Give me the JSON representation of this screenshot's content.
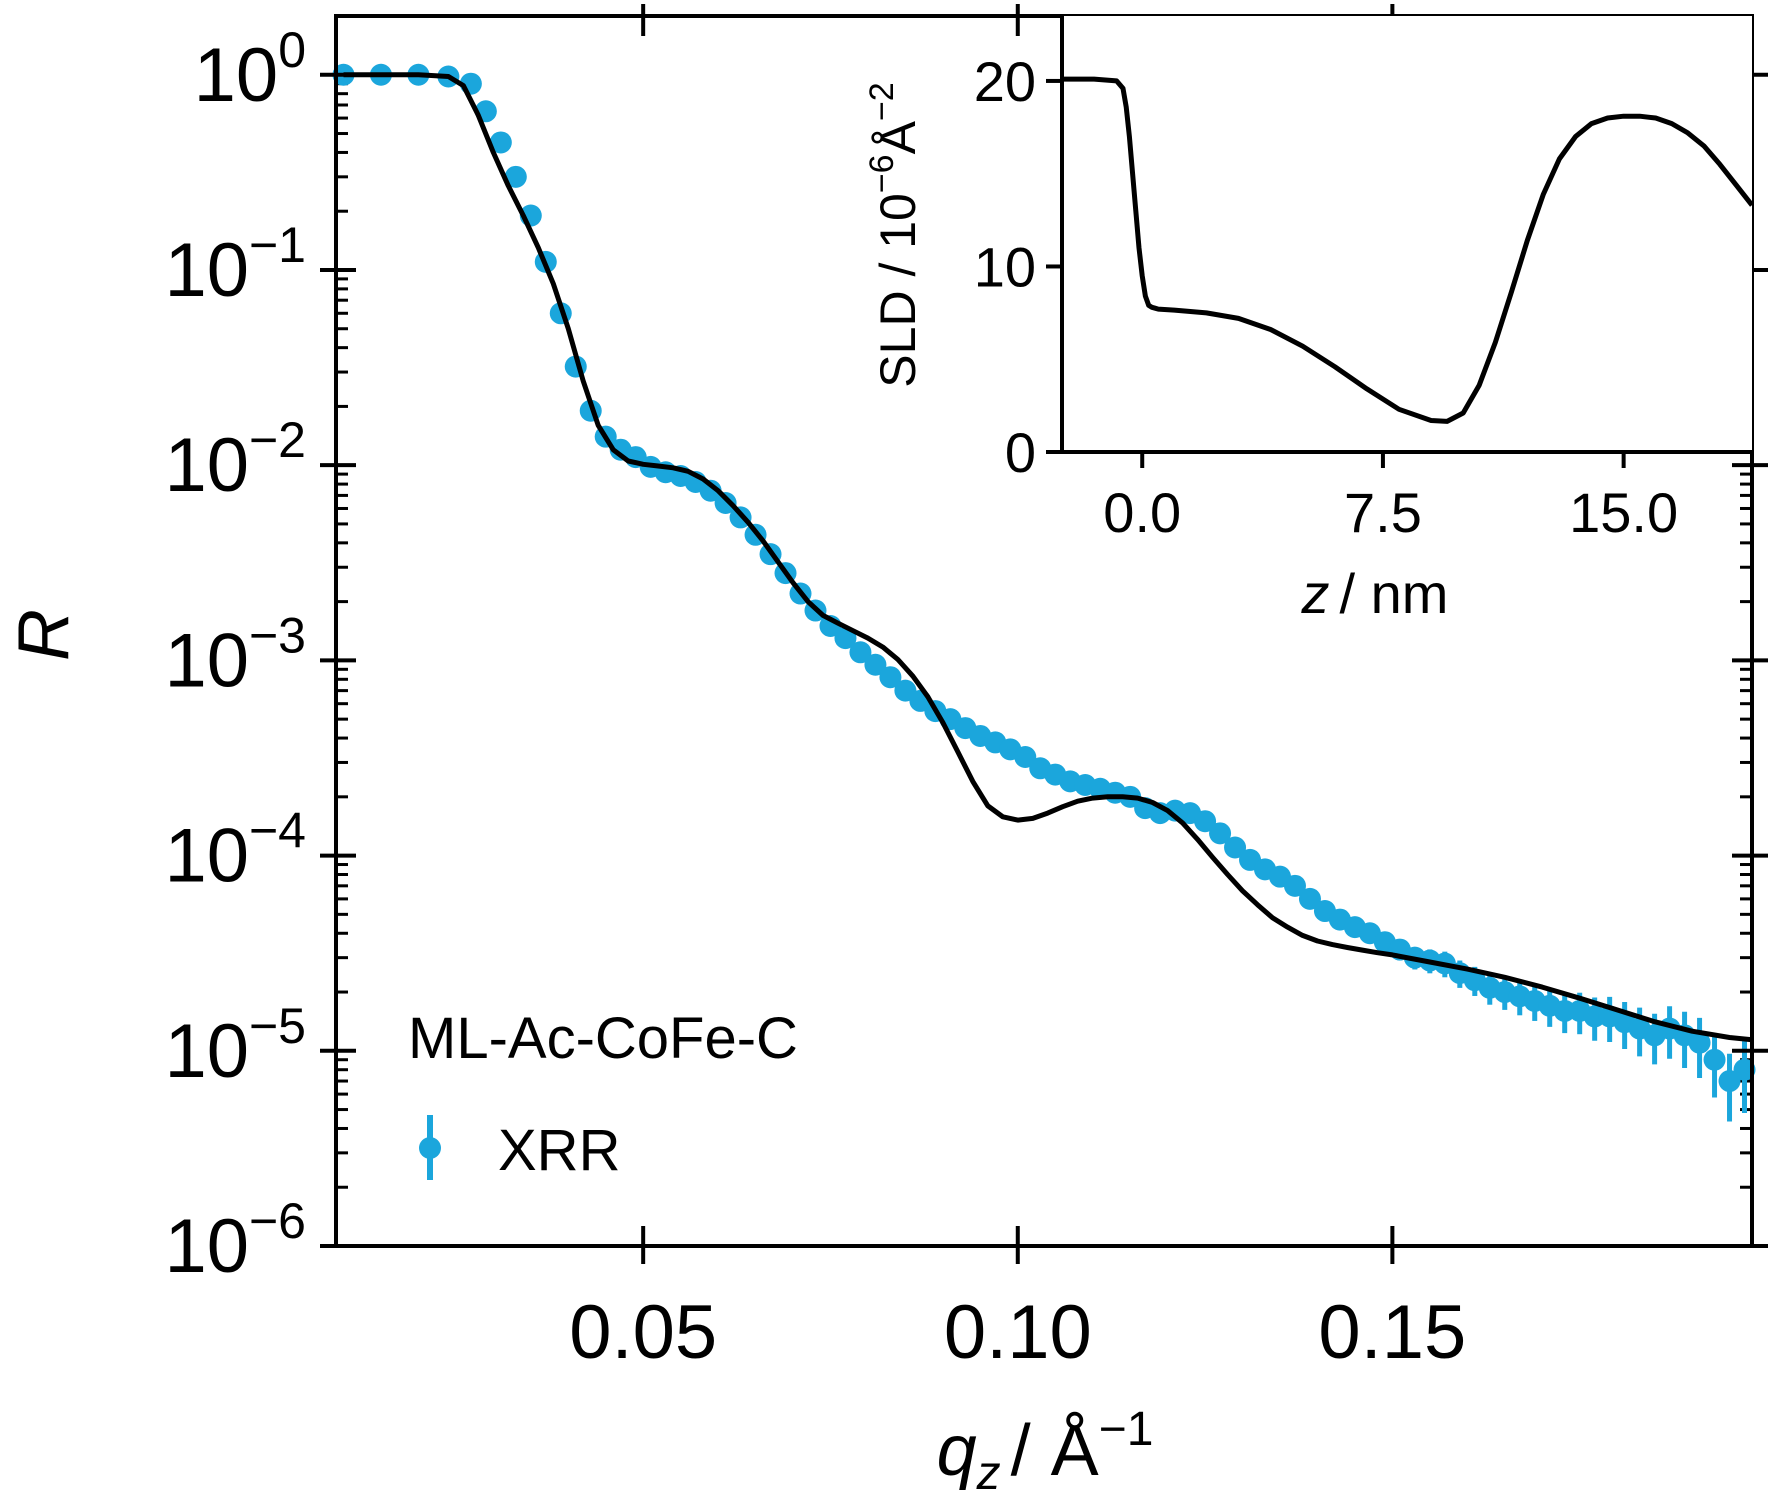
{
  "chart_data": [
    {
      "type": "scatter",
      "title": "",
      "xlabel": "q_z / Å^-1",
      "xlabel_var": "q",
      "xlabel_sub": "z",
      "xlabel_unit": "/ Å",
      "xlabel_exp": "−1",
      "ylabel": "R",
      "xlim": [
        0.009,
        0.198
      ],
      "ylim": [
        1e-06,
        2
      ],
      "yscale": "log",
      "xticks": [
        0.05,
        0.1,
        0.15
      ],
      "xtick_labels": [
        "0.05",
        "0.10",
        "0.15"
      ],
      "yticks": [
        1,
        0.1,
        0.01,
        0.001,
        0.0001,
        1e-05,
        1e-06
      ],
      "ytick_labels": [
        {
          "base": "10",
          "exp": "0"
        },
        {
          "base": "10",
          "exp": "−1"
        },
        {
          "base": "10",
          "exp": "−2"
        },
        {
          "base": "10",
          "exp": "−3"
        },
        {
          "base": "10",
          "exp": "−4"
        },
        {
          "base": "10",
          "exp": "−5"
        },
        {
          "base": "10",
          "exp": "−6"
        }
      ],
      "legend": {
        "title": "ML-Ac-CoFe-C",
        "location": "lower-left",
        "entries": [
          "XRR"
        ]
      },
      "series": [
        {
          "name": "XRR",
          "kind": "points-with-errorbars",
          "color": "#1ba6dc",
          "x": [
            0.01,
            0.015,
            0.02,
            0.024,
            0.027,
            0.029,
            0.031,
            0.033,
            0.035,
            0.037,
            0.039,
            0.041,
            0.043,
            0.045,
            0.047,
            0.049,
            0.051,
            0.053,
            0.055,
            0.057,
            0.059,
            0.061,
            0.063,
            0.065,
            0.067,
            0.069,
            0.071,
            0.073,
            0.075,
            0.077,
            0.079,
            0.081,
            0.083,
            0.085,
            0.087,
            0.089,
            0.091,
            0.093,
            0.095,
            0.097,
            0.099,
            0.101,
            0.103,
            0.105,
            0.107,
            0.109,
            0.111,
            0.113,
            0.115,
            0.117,
            0.119,
            0.121,
            0.123,
            0.125,
            0.127,
            0.129,
            0.131,
            0.133,
            0.135,
            0.137,
            0.139,
            0.141,
            0.143,
            0.145,
            0.147,
            0.149,
            0.151,
            0.153,
            0.155,
            0.157,
            0.159,
            0.161,
            0.163,
            0.165,
            0.167,
            0.169,
            0.171,
            0.173,
            0.175,
            0.177,
            0.179,
            0.181,
            0.183,
            0.185,
            0.187,
            0.189,
            0.191,
            0.193,
            0.195,
            0.197
          ],
          "y": [
            1.0,
            1.0,
            1.0,
            0.98,
            0.9,
            0.65,
            0.45,
            0.3,
            0.19,
            0.11,
            0.06,
            0.032,
            0.019,
            0.014,
            0.012,
            0.011,
            0.0098,
            0.0092,
            0.0088,
            0.0082,
            0.0074,
            0.0064,
            0.0054,
            0.0044,
            0.0035,
            0.0028,
            0.0022,
            0.0018,
            0.0015,
            0.0013,
            0.0011,
            0.00095,
            0.00082,
            0.0007,
            0.00062,
            0.00055,
            0.0005,
            0.00045,
            0.00041,
            0.00038,
            0.00035,
            0.00032,
            0.00028,
            0.00026,
            0.00024,
            0.00023,
            0.00022,
            0.00021,
            0.0002,
            0.000175,
            0.000165,
            0.00017,
            0.000165,
            0.00015,
            0.00013,
            0.00011,
            9.5e-05,
            8.5e-05,
            7.8e-05,
            7e-05,
            6e-05,
            5.2e-05,
            4.7e-05,
            4.3e-05,
            4e-05,
            3.6e-05,
            3.3e-05,
            3e-05,
            2.9e-05,
            2.8e-05,
            2.5e-05,
            2.3e-05,
            2.1e-05,
            2e-05,
            1.9e-05,
            1.8e-05,
            1.7e-05,
            1.6e-05,
            1.6e-05,
            1.5e-05,
            1.5e-05,
            1.4e-05,
            1.3e-05,
            1.2e-05,
            1.3e-05,
            1.2e-05,
            1.1e-05,
            9e-06,
            7e-06,
            8e-06
          ],
          "err_pct": [
            1,
            1,
            1,
            1,
            1,
            2,
            2,
            2,
            2,
            2,
            2,
            2,
            2,
            2,
            2,
            2,
            2,
            2,
            2,
            2,
            2,
            2,
            2,
            2,
            2,
            2,
            2,
            3,
            3,
            3,
            3,
            3,
            3,
            3,
            3,
            3,
            3,
            3,
            3,
            3,
            3,
            3,
            4,
            4,
            4,
            4,
            4,
            4,
            4,
            4,
            4,
            4,
            4,
            5,
            5,
            5,
            5,
            6,
            6,
            6,
            7,
            8,
            8,
            9,
            10,
            11,
            12,
            13,
            14,
            15,
            16,
            17,
            18,
            19,
            20,
            21,
            22,
            23,
            24,
            25,
            26,
            27,
            28,
            29,
            30,
            32,
            34,
            36,
            38,
            40
          ]
        },
        {
          "name": "",
          "kind": "line",
          "color": "#000000",
          "x": [
            0.01,
            0.015,
            0.02,
            0.024,
            0.026,
            0.028,
            0.03,
            0.032,
            0.034,
            0.036,
            0.038,
            0.04,
            0.042,
            0.044,
            0.046,
            0.048,
            0.05,
            0.052,
            0.054,
            0.056,
            0.058,
            0.06,
            0.062,
            0.064,
            0.066,
            0.068,
            0.07,
            0.072,
            0.074,
            0.076,
            0.078,
            0.08,
            0.082,
            0.084,
            0.086,
            0.088,
            0.09,
            0.092,
            0.094,
            0.096,
            0.098,
            0.1,
            0.102,
            0.104,
            0.106,
            0.108,
            0.11,
            0.112,
            0.114,
            0.116,
            0.118,
            0.12,
            0.122,
            0.124,
            0.126,
            0.128,
            0.13,
            0.132,
            0.134,
            0.136,
            0.138,
            0.14,
            0.142,
            0.144,
            0.146,
            0.148,
            0.15,
            0.155,
            0.16,
            0.165,
            0.17,
            0.175,
            0.18,
            0.185,
            0.19,
            0.195,
            0.198
          ],
          "y": [
            1.0,
            1.0,
            1.0,
            0.98,
            0.88,
            0.62,
            0.4,
            0.27,
            0.19,
            0.13,
            0.085,
            0.05,
            0.027,
            0.016,
            0.012,
            0.0105,
            0.0101,
            0.0099,
            0.0097,
            0.0093,
            0.0085,
            0.0074,
            0.0062,
            0.0051,
            0.0041,
            0.0032,
            0.0025,
            0.002,
            0.0017,
            0.00155,
            0.00142,
            0.0013,
            0.00117,
            0.00101,
            0.00083,
            0.00065,
            0.00048,
            0.00034,
            0.00024,
            0.00018,
            0.000158,
            0.000152,
            0.000155,
            0.000165,
            0.000178,
            0.00019,
            0.000197,
            0.0002,
            0.0002,
            0.000197,
            0.000187,
            0.00017,
            0.000147,
            0.000121,
            9.8e-05,
            8e-05,
            6.6e-05,
            5.6e-05,
            4.8e-05,
            4.3e-05,
            3.9e-05,
            3.65e-05,
            3.5e-05,
            3.38e-05,
            3.28e-05,
            3.18e-05,
            3.1e-05,
            2.85e-05,
            2.62e-05,
            2.38e-05,
            2.12e-05,
            1.86e-05,
            1.62e-05,
            1.41e-05,
            1.26e-05,
            1.17e-05,
            1.14e-05
          ]
        }
      ]
    },
    {
      "type": "line",
      "title": "",
      "xlabel": "z / nm",
      "xlabel_var": "z",
      "xlabel_unit": "/ nm",
      "ylabel": "SLD / 10^-6 Å^-2",
      "ylabel_text": "SLD / 10",
      "ylabel_exp1": "−6",
      "ylabel_unit": "Å",
      "ylabel_exp2": "−2",
      "xlim": [
        -2.5,
        19.0
      ],
      "ylim": [
        0,
        23.5
      ],
      "xticks": [
        0.0,
        7.5,
        15.0
      ],
      "xtick_labels": [
        "0.0",
        "7.5",
        "15.0"
      ],
      "yticks": [
        0,
        10,
        20
      ],
      "ytick_labels": [
        "0",
        "10",
        "20"
      ],
      "series": [
        {
          "name": "",
          "color": "#000000",
          "x": [
            -2.5,
            -1.5,
            -0.8,
            -0.6,
            -0.5,
            -0.4,
            -0.3,
            -0.2,
            -0.1,
            0.0,
            0.1,
            0.2,
            0.3,
            0.4,
            0.5,
            1.0,
            2.0,
            3.0,
            4.0,
            5.0,
            6.0,
            7.0,
            8.0,
            9.0,
            9.5,
            10.0,
            10.5,
            11.0,
            11.5,
            12.0,
            12.5,
            13.0,
            13.5,
            14.0,
            14.5,
            15.0,
            15.5,
            16.0,
            16.5,
            17.0,
            17.5,
            18.0,
            18.5,
            19.0
          ],
          "y": [
            20.1,
            20.1,
            20.0,
            19.6,
            18.6,
            17.0,
            15.0,
            13.0,
            11.0,
            9.5,
            8.4,
            7.9,
            7.8,
            7.75,
            7.7,
            7.65,
            7.5,
            7.2,
            6.6,
            5.7,
            4.6,
            3.4,
            2.3,
            1.7,
            1.65,
            2.1,
            3.6,
            5.9,
            8.6,
            11.4,
            13.9,
            15.8,
            17.0,
            17.7,
            18.0,
            18.1,
            18.1,
            18.0,
            17.7,
            17.2,
            16.5,
            15.5,
            14.4,
            13.3
          ]
        }
      ]
    }
  ]
}
